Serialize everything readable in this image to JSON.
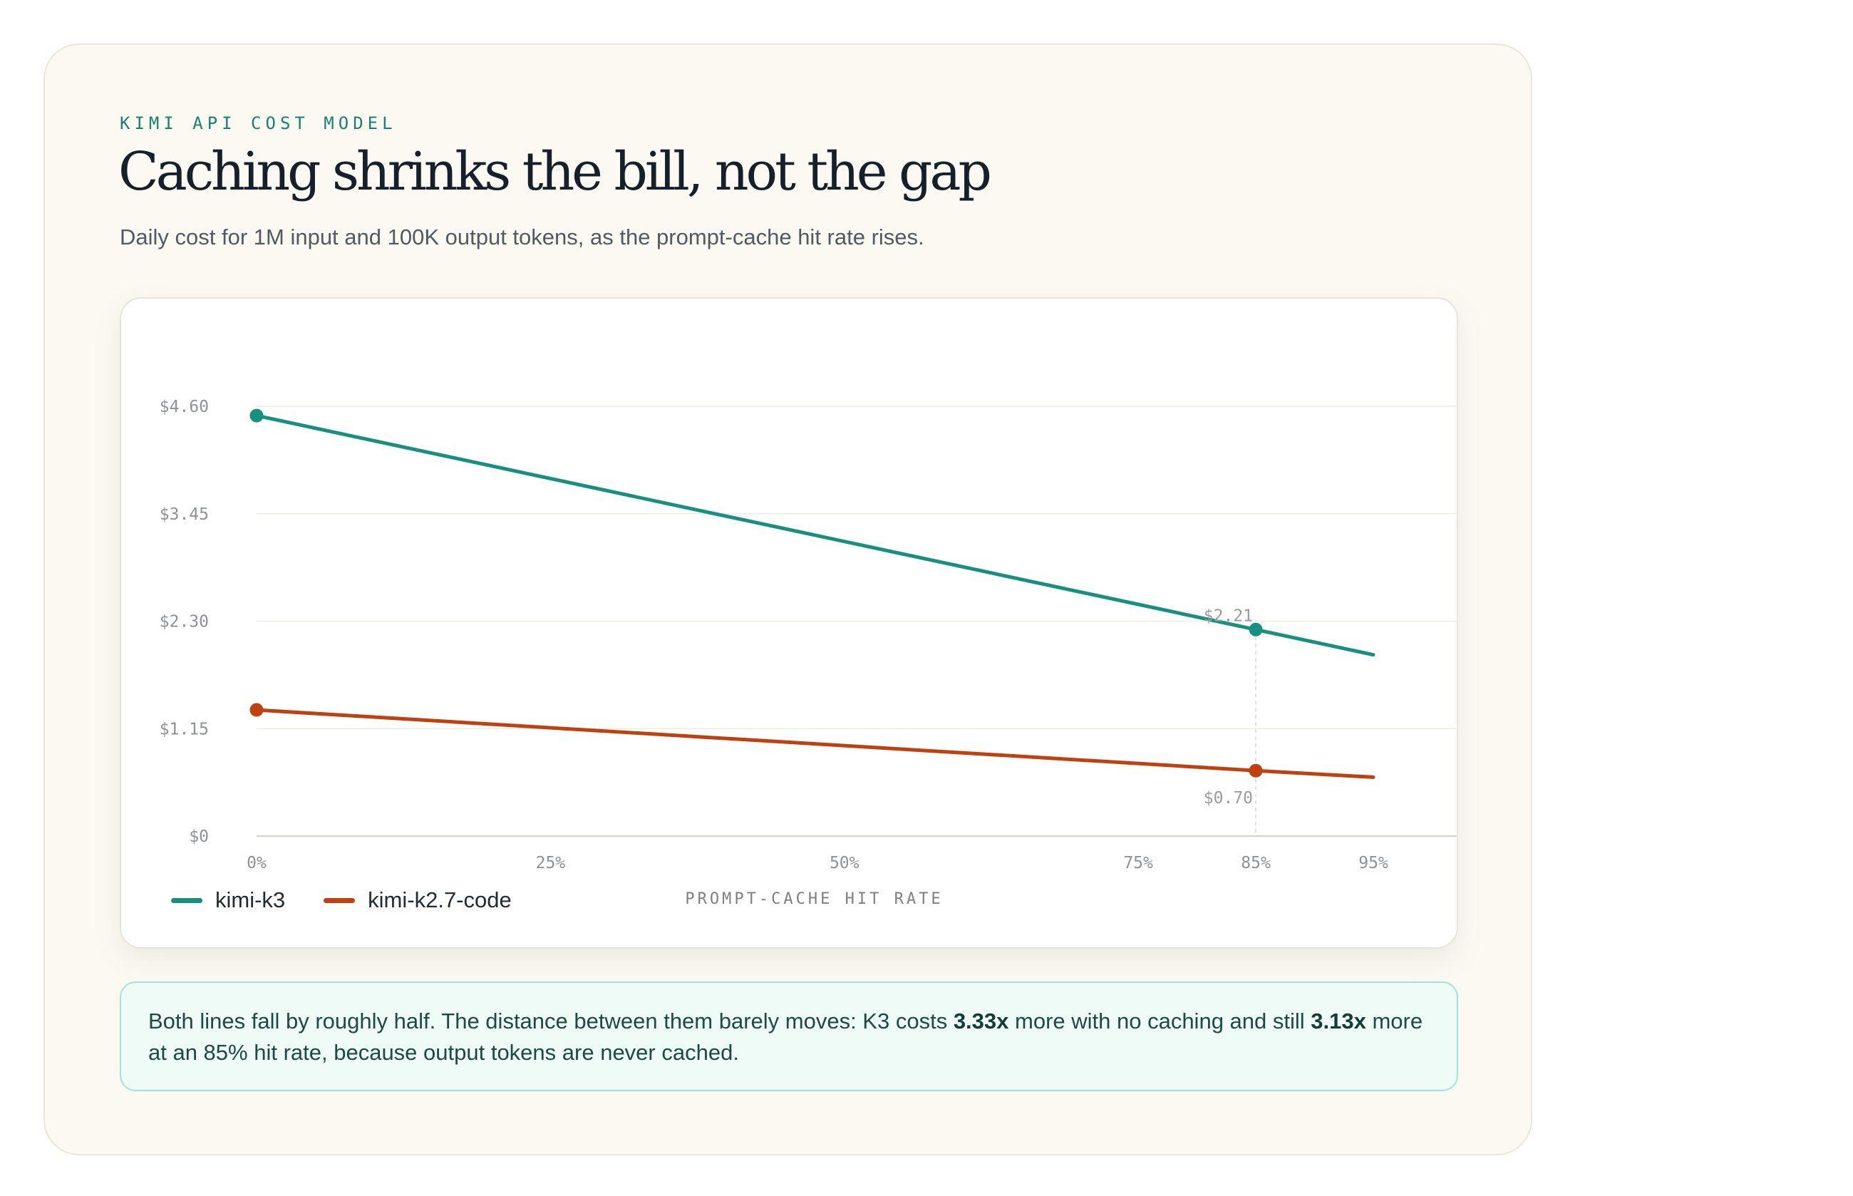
{
  "header": {
    "eyebrow": "KIMI API COST MODEL",
    "title": "Caching shrinks the bill, not the gap",
    "subtitle": "Daily cost for 1M input and 100K output tokens, as the prompt-cache hit rate rises."
  },
  "colors": {
    "kimi_k3": "#17907f",
    "kimi_k27_code": "#c0400f",
    "accent_eyebrow": "#17826f"
  },
  "chart_data": {
    "type": "line",
    "x_axis_title": "PROMPT-CACHE HIT RATE",
    "x_ticks": [
      {
        "value": 0,
        "label": "0%"
      },
      {
        "value": 25,
        "label": "25%"
      },
      {
        "value": 50,
        "label": "50%"
      },
      {
        "value": 75,
        "label": "75%"
      },
      {
        "value": 85,
        "label": "85%"
      },
      {
        "value": 95,
        "label": "95%"
      }
    ],
    "y_ticks": [
      {
        "value": 0,
        "label": "$0"
      },
      {
        "value": 1.15,
        "label": "$1.15"
      },
      {
        "value": 2.3,
        "label": "$2.30"
      },
      {
        "value": 3.45,
        "label": "$3.45"
      },
      {
        "value": 4.6,
        "label": "$4.60"
      }
    ],
    "xlim": [
      0,
      100
    ],
    "ylim": [
      0,
      4.6
    ],
    "grid": true,
    "legend_position": "bottom-left",
    "series": [
      {
        "name": "kimi-k3",
        "x": [
          0,
          85,
          95
        ],
        "y": [
          4.5,
          2.21,
          1.94
        ],
        "markers": [
          0,
          85
        ],
        "color": "#17907f"
      },
      {
        "name": "kimi-k2.7-code",
        "x": [
          0,
          85,
          95
        ],
        "y": [
          1.35,
          0.7,
          0.63
        ],
        "markers": [
          0,
          85
        ],
        "color": "#c0400f"
      }
    ],
    "annotations": [
      {
        "x": 85,
        "y": 2.21,
        "label": "$2.21",
        "series": "kimi-k3"
      },
      {
        "x": 85,
        "y": 0.7,
        "label": "$0.70",
        "series": "kimi-k2.7-code"
      }
    ],
    "reference_line_x": 85
  },
  "note": {
    "part1": "Both lines fall by roughly half. The distance between them barely moves: K3 costs ",
    "bold1": "3.33x",
    "part2": " more with no caching and still ",
    "bold2": "3.13x",
    "part3": " more at an 85% hit rate, because output tokens are never cached."
  }
}
